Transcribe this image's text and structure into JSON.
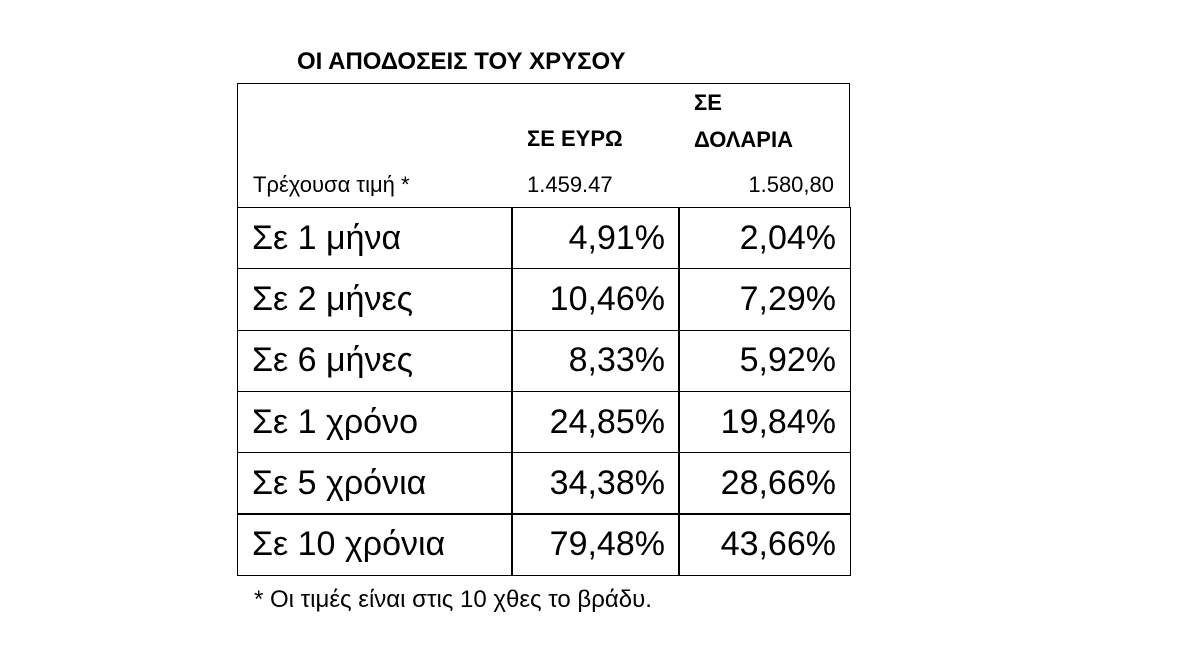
{
  "title": "ΟΙ ΑΠΟΔΟΣΕΙΣ ΤΟΥ ΧΡΥΣΟΥ",
  "table": {
    "columns": [
      "ΣΕ ΕΥΡΩ",
      "ΣΕ ΔΟΛΑΡΙΑ"
    ],
    "current_price": {
      "label": "Τρέχουσα τιμή *",
      "values": [
        "1.459.47",
        "1.580,80"
      ]
    },
    "rows": [
      {
        "label": "Σε 1 μήνα",
        "values": [
          "4,91%",
          "2,04%"
        ]
      },
      {
        "label": "Σε 2 μήνες",
        "values": [
          "10,46%",
          "7,29%"
        ]
      },
      {
        "label": "Σε 6 μήνες",
        "values": [
          "8,33%",
          "5,92%"
        ]
      },
      {
        "label": "Σε 1 χρόνο",
        "values": [
          "24,85%",
          "19,84%"
        ]
      },
      {
        "label": "Σε 5 χρόνια",
        "values": [
          "34,38%",
          "28,66%"
        ]
      },
      {
        "label": "Σε 10 χρόνια",
        "values": [
          "79,48%",
          "43,66%"
        ]
      }
    ]
  },
  "footnote": "* Οι τιμές είναι στις 10 χθες το βράδυ."
}
